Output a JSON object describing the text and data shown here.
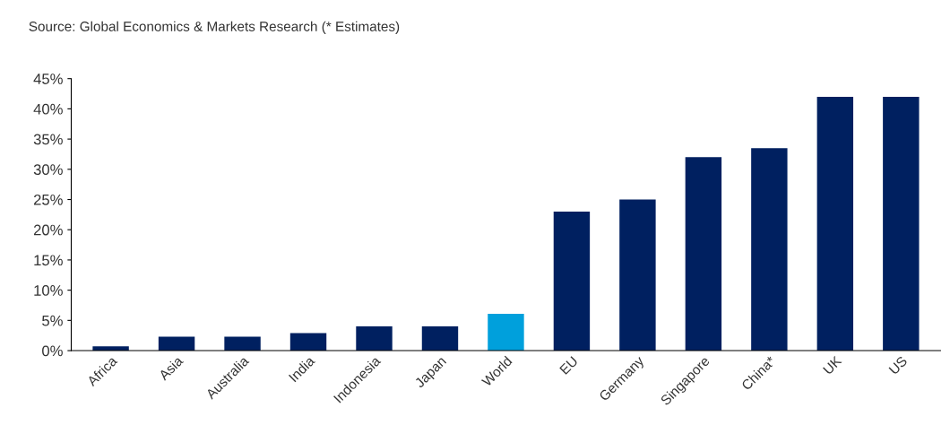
{
  "chart_data": {
    "type": "bar",
    "annotations": [
      "Source: Global Economics & Markets Research (* Estimates)"
    ],
    "categories": [
      "Africa",
      "Asia",
      "Australia",
      "India",
      "Indonesia",
      "Japan",
      "World",
      "EU",
      "Germany",
      "Singapore",
      "China*",
      "UK",
      "US"
    ],
    "values": [
      0.7,
      2.3,
      2.3,
      2.9,
      4.0,
      4.0,
      6.1,
      23.0,
      25.0,
      32.0,
      33.5,
      42.0,
      42.0
    ],
    "colors": [
      "#002060",
      "#002060",
      "#002060",
      "#002060",
      "#002060",
      "#002060",
      "#00a0dc",
      "#002060",
      "#002060",
      "#002060",
      "#002060",
      "#002060",
      "#002060"
    ],
    "ylim": [
      0,
      45
    ],
    "yticks": [
      {
        "value": 0,
        "label": "0%"
      },
      {
        "value": 5,
        "label": "5%"
      },
      {
        "value": 10,
        "label": "10%"
      },
      {
        "value": 15,
        "label": "15%"
      },
      {
        "value": 20,
        "label": "20%"
      },
      {
        "value": 25,
        "label": "25%"
      },
      {
        "value": 30,
        "label": "30%"
      },
      {
        "value": 35,
        "label": "35%"
      },
      {
        "value": 40,
        "label": "40%"
      },
      {
        "value": 45,
        "label": "45%"
      }
    ],
    "grid": false,
    "legend": false
  }
}
